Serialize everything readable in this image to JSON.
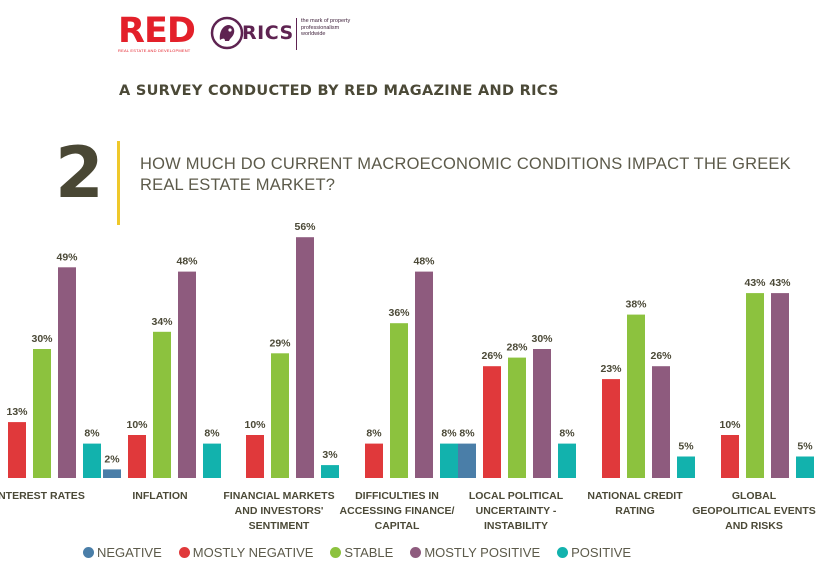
{
  "logos": {
    "red_text": "RED",
    "red_subtitle": "REAL ESTATE AND DEVELOPMENT",
    "rics_text": "RICS",
    "rics_tagline": "the mark of property professionalism worldwide"
  },
  "headline": "A SURVEY CONDUCTED BY RED MAGAZINE AND RICS",
  "question": {
    "number": "2",
    "text": "HOW MUCH DO CURRENT MACROECONOMIC CONDITIONS IMPACT THE GREEK REAL ESTATE MARKET?"
  },
  "colors": {
    "negative": "#4a7ea8",
    "mostly_negative": "#e0393b",
    "stable": "#8cc23e",
    "mostly_positive": "#8e5b7e",
    "positive": "#12b2ad",
    "text": "#4b4937",
    "accent_rule": "#efc82a"
  },
  "chart_data": {
    "type": "bar",
    "title": "",
    "xlabel": "",
    "ylabel": "",
    "ylim": [
      0,
      60
    ],
    "grid": false,
    "legend_position": "bottom",
    "value_suffix": "%",
    "categories": [
      [
        "INTEREST RATES"
      ],
      [
        "INFLATION"
      ],
      [
        "FINANCIAL MARKETS",
        "AND INVESTORS'",
        "SENTIMENT"
      ],
      [
        "DIFFICULTIES IN",
        "ACCESSING FINANCE/",
        "CAPITAL"
      ],
      [
        "LOCAL POLITICAL",
        "UNCERTAINTY -",
        "INSTABILITY"
      ],
      [
        "NATIONAL CREDIT",
        "RATING"
      ],
      [
        "GLOBAL",
        "GEOPOLITICAL EVENTS",
        "AND RISKS"
      ]
    ],
    "series": [
      {
        "name": "NEGATIVE",
        "color": "#4a7ea8",
        "values": [
          0,
          2,
          0,
          0,
          8,
          0,
          0
        ]
      },
      {
        "name": "MOSTLY NEGATIVE",
        "color": "#e0393b",
        "values": [
          13,
          10,
          10,
          8,
          26,
          23,
          10
        ]
      },
      {
        "name": "STABLE",
        "color": "#8cc23e",
        "values": [
          30,
          34,
          29,
          36,
          28,
          38,
          43
        ]
      },
      {
        "name": "MOSTLY POSITIVE",
        "color": "#8e5b7e",
        "values": [
          49,
          48,
          56,
          48,
          30,
          26,
          43
        ]
      },
      {
        "name": "POSITIVE",
        "color": "#12b2ad",
        "values": [
          8,
          8,
          3,
          8,
          8,
          5,
          5
        ]
      }
    ],
    "label_zero_values": false
  }
}
